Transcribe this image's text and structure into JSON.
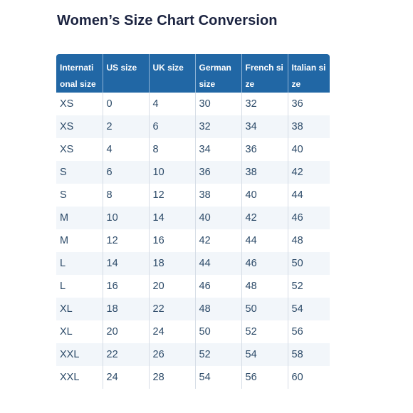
{
  "title": "Women’s Size Chart Conversion",
  "colors": {
    "header_bg": "#2167a5",
    "header_text": "#ffffff",
    "title_text": "#1b2340",
    "cell_text": "#2c4a68",
    "alt_row_bg": "#f2f6fa"
  },
  "table": {
    "columns": [
      "Internati onal size",
      "US size",
      "UK size",
      "German size",
      "French size",
      "Italian size"
    ],
    "rows": [
      [
        "XS",
        "0",
        "4",
        "30",
        "32",
        "36"
      ],
      [
        "XS",
        "2",
        "6",
        "32",
        "34",
        "38"
      ],
      [
        "XS",
        "4",
        "8",
        "34",
        "36",
        "40"
      ],
      [
        "S",
        "6",
        "10",
        "36",
        "38",
        "42"
      ],
      [
        "S",
        "8",
        "12",
        "38",
        "40",
        "44"
      ],
      [
        "M",
        "10",
        "14",
        "40",
        "42",
        "46"
      ],
      [
        "M",
        "12",
        "16",
        "42",
        "44",
        "48"
      ],
      [
        "L",
        "14",
        "18",
        "44",
        "46",
        "50"
      ],
      [
        "L",
        "16",
        "20",
        "46",
        "48",
        "52"
      ],
      [
        "XL",
        "18",
        "22",
        "48",
        "50",
        "54"
      ],
      [
        "XL",
        "20",
        "24",
        "50",
        "52",
        "56"
      ],
      [
        "XXL",
        "22",
        "26",
        "52",
        "54",
        "58"
      ],
      [
        "XXL",
        "24",
        "28",
        "54",
        "56",
        "60"
      ]
    ]
  }
}
